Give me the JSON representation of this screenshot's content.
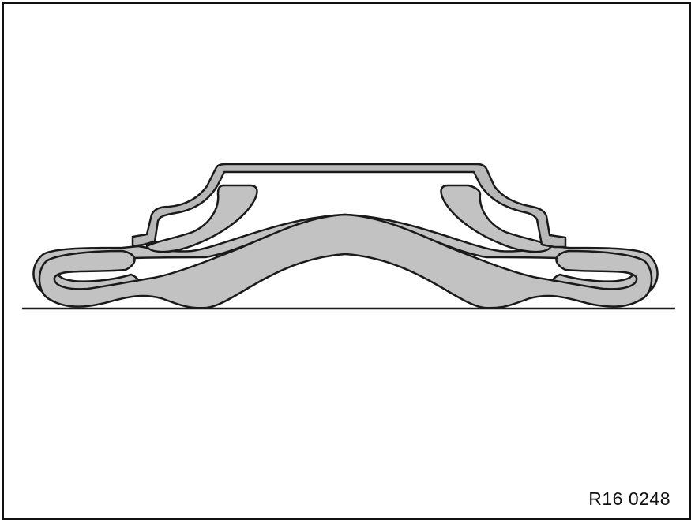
{
  "figure": {
    "reference_code": "R16 0248"
  },
  "colors": {
    "outline": "#1a1a1a",
    "part_fill": "#c2c2c2",
    "background": "#ffffff"
  }
}
